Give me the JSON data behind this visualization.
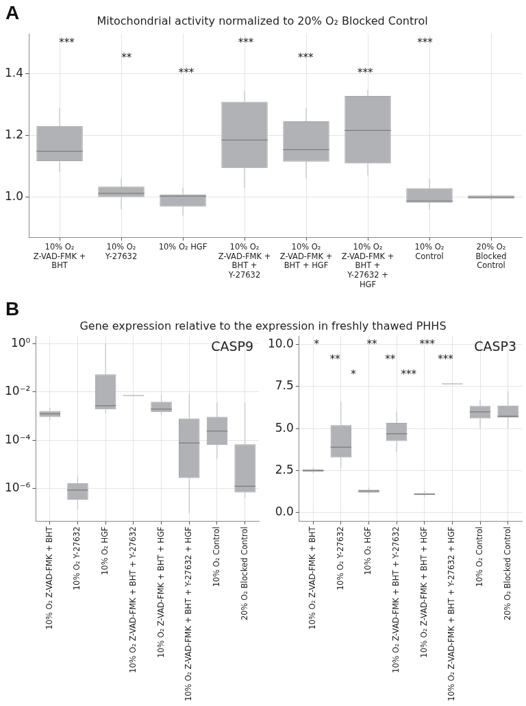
{
  "chart_data": [
    {
      "type": "box",
      "title": "Mitochondrial activity normalized to 20% O₂ Blocked Control",
      "categories": [
        "10% O₂ Z-VAD-FMK + BHT",
        "10% O₂ Y-27632",
        "10% O₂ HGF",
        "10% O₂ Z-VAD-FMK + BHT + Y-27632",
        "10% O₂ Z-VAD-FMK + BHT + HGF",
        "10% O₂ Z-VAD-FMK + BHT + Y-27632 + HGF",
        "10% O₂ Control",
        "20% O₂ Blocked Control"
      ],
      "color": "#b1b2b5",
      "boxes": [
        {
          "low": 1.08,
          "q1": 1.117,
          "median": 1.149,
          "q3": 1.231,
          "high": 1.29
        },
        {
          "low": 0.96,
          "q1": 1.0,
          "median": 1.012,
          "q3": 1.034,
          "high": 1.06
        },
        {
          "low": 0.94,
          "q1": 0.969,
          "median": 1.003,
          "q3": 1.009,
          "high": 1.03
        },
        {
          "low": 1.03,
          "q1": 1.094,
          "median": 1.185,
          "q3": 1.309,
          "high": 1.344
        },
        {
          "low": 1.06,
          "q1": 1.115,
          "median": 1.154,
          "q3": 1.246,
          "high": 1.29
        },
        {
          "low": 1.07,
          "q1": 1.109,
          "median": 1.216,
          "q3": 1.328,
          "high": 1.348
        },
        {
          "low": 0.96,
          "q1": 0.982,
          "median": 0.987,
          "q3": 1.029,
          "high": 1.06
        },
        {
          "low": 0.99,
          "q1": 0.995,
          "median": 1.0,
          "q3": 1.005,
          "high": 1.01
        }
      ],
      "ylim": [
        0.87,
        1.53
      ],
      "yticks": [
        {
          "value": 1,
          "label": "1.0"
        },
        1.2,
        1.4
      ],
      "grid": true,
      "annotations": [
        "A",
        "***",
        "**",
        "***",
        "***",
        "***",
        "***",
        "***"
      ]
    },
    {
      "type": "box",
      "title": "Gene expression relative to the expression in freshly thawed PHHS",
      "categories": [
        "10% O₂ Z-VAD-FMK + BHT",
        "10% O₂ Y-27632",
        "10% O₂ HGF",
        "10% O₂ Z-VAD-FMK + BHT + Y-27632",
        "10% O₂ Z-VAD-FMK + BHT + HGF",
        "10% O₂ Z-VAD-FMK + BHT + Y-27632 + HGF",
        "10% O₂ Control",
        "20% O₂ Blocked Control"
      ],
      "color": "#b1b2b5",
      "boxes": [
        {
          "low": 0.00069,
          "q1": 0.00091,
          "median": 0.00125,
          "q3": 0.00165,
          "high": 0.0022
        },
        {
          "low": 1.35e-07,
          "q1": 3.4e-07,
          "median": 8.7e-07,
          "q3": 1.7e-06,
          "high": 3.5e-06
        },
        {
          "low": 0.00135,
          "q1": 0.0019,
          "median": 0.0027,
          "q3": 0.053,
          "high": 1
        },
        {
          "low": 0.0071,
          "q1": 0.0071,
          "median": 0.0071,
          "q3": 0.0071,
          "high": 0.0071
        },
        {
          "low": 0.0011,
          "q1": 0.00147,
          "median": 0.00195,
          "q3": 0.0039,
          "high": 0.0078
        },
        {
          "low": 9.6e-08,
          "q1": 2.7e-06,
          "median": 7.7e-05,
          "q3": 0.0008,
          "high": 0.0087
        },
        {
          "low": 1.7e-05,
          "q1": 6.4e-05,
          "median": 0.00024,
          "q3": 0.00092,
          "high": 0.0036
        },
        {
          "low": 4e-07,
          "q1": 6.9e-07,
          "median": 1.25e-06,
          "q3": 6.8e-05,
          "high": 0.0036
        }
      ],
      "log": true,
      "ylim": [
        4.5e-08,
        2.1
      ],
      "yticks": [
        {
          "value": 1,
          "label": "10⁰"
        },
        {
          "value": 0.01,
          "label": "10⁻²"
        },
        {
          "value": 0.0001,
          "label": "10⁻⁴"
        },
        {
          "value": 1e-06,
          "label": "10⁻⁶"
        }
      ],
      "grid": true,
      "annotations": [
        "B",
        "CASP9"
      ]
    },
    {
      "type": "box",
      "categories": [
        "10% O₂ Z-VAD-FMK + BHT",
        "10% O₂ Y-27632",
        "10% O₂ HGF",
        "10% O₂ Z-VAD-FMK + BHT + Y-27632",
        "10% O₂ Z-VAD-FMK + BHT + HGF",
        "10% O₂ Z-VAD-FMK + BHT + Y-27632 + HGF",
        "10% O₂ Control",
        "20% O₂ Blocked Control"
      ],
      "color": "#b1b2b5",
      "boxes": [
        {
          "low": 2.35,
          "q1": 2.43,
          "median": 2.5,
          "q3": 2.58,
          "high": 2.66
        },
        {
          "low": 2.66,
          "q1": 3.28,
          "median": 3.89,
          "q3": 5.2,
          "high": 6.6
        },
        {
          "low": 1.1,
          "q1": 1.19,
          "median": 1.29,
          "q3": 1.36,
          "high": 1.5
        },
        {
          "low": 3.6,
          "q1": 4.25,
          "median": 4.69,
          "q3": 5.33,
          "high": 6.0
        },
        {
          "low": 0.95,
          "q1": 1.05,
          "median": 1.1,
          "q3": 1.16,
          "high": 1.3
        },
        {
          "low": 7.65,
          "q1": 7.65,
          "median": 7.65,
          "q3": 7.65,
          "high": 7.65
        },
        {
          "low": 5.0,
          "q1": 5.6,
          "median": 5.99,
          "q3": 6.34,
          "high": 6.7
        },
        {
          "low": 5.0,
          "q1": 5.66,
          "median": 5.73,
          "q3": 6.36,
          "high": 7.2
        }
      ],
      "ylim": [
        -0.5,
        10.5
      ],
      "yticks": [
        {
          "value": 0,
          "label": "0.0"
        },
        2.5,
        {
          "value": 5,
          "label": "5.0"
        },
        7.5,
        {
          "value": 10,
          "label": "10.0"
        }
      ],
      "grid": true,
      "annotations": [
        "CASP3",
        "*",
        "**",
        "*",
        "**",
        "**",
        "***",
        "***",
        "***"
      ]
    }
  ]
}
